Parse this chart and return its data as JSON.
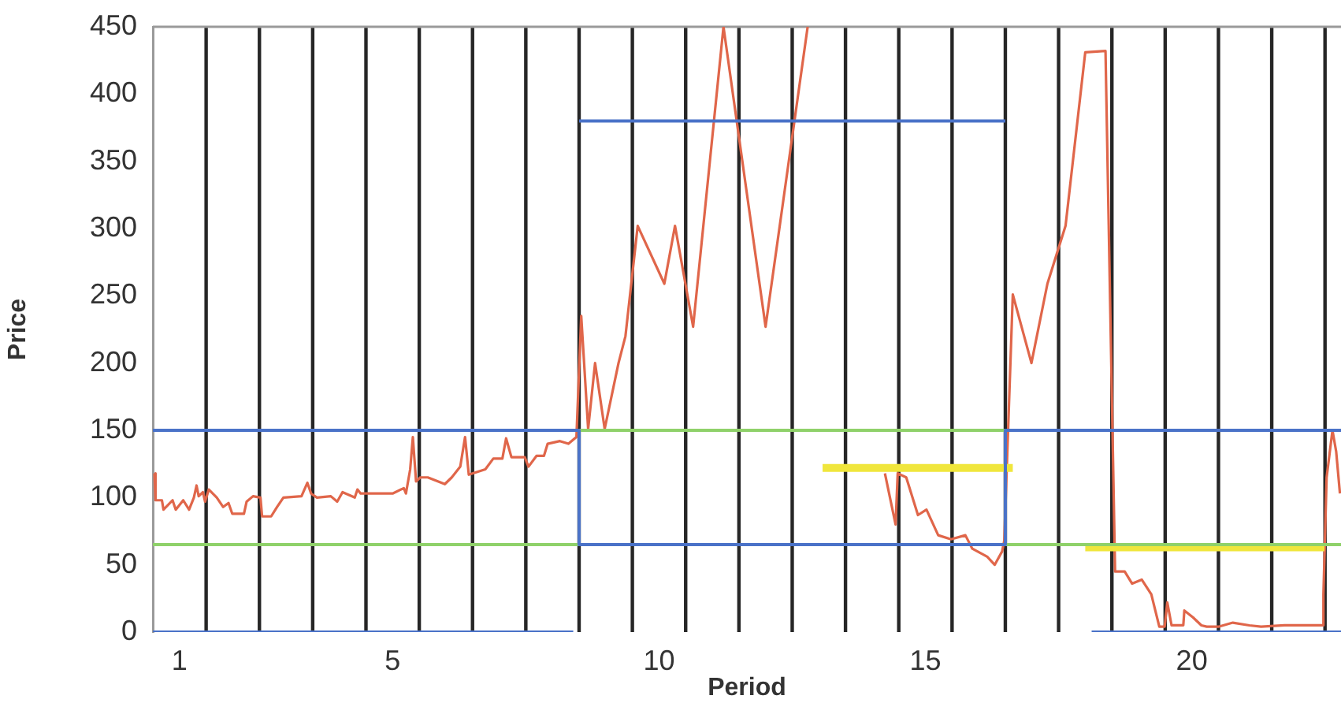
{
  "chart_data": {
    "type": "line",
    "xlabel": "Period",
    "ylabel": "Price",
    "xlim": [
      0.5,
      22.8
    ],
    "ylim": [
      0,
      450
    ],
    "xticks": [
      1,
      5,
      10,
      15,
      20
    ],
    "yticks": [
      0,
      50,
      100,
      150,
      200,
      250,
      300,
      350,
      400,
      450
    ],
    "grid": false,
    "legend": false,
    "marker": "none",
    "series": [
      {
        "color": "#4a72c8",
        "x": [
          0.5,
          8.5,
          8.5,
          16.5,
          16.5,
          22.8
        ],
        "values": [
          150,
          150,
          65,
          65,
          150,
          150
        ]
      },
      {
        "color": "#4a72c8",
        "x": [
          8.5,
          16.5
        ],
        "values": [
          380,
          380
        ]
      },
      {
        "color": "#4a72c8",
        "x": [
          0.5,
          8.39,
          14,
          18.12,
          22.8
        ],
        "values": [
          0,
          0,
          null,
          0,
          0
        ]
      },
      {
        "color": "#8fd16a",
        "x": [
          0.5,
          8.5,
          8.5,
          16.5,
          16.5,
          22.8
        ],
        "values": [
          65,
          65,
          150,
          150,
          65,
          65
        ]
      },
      {
        "color": "#f0e63c",
        "x": [
          13.07,
          16.64
        ],
        "values": [
          122,
          122
        ]
      },
      {
        "color": "#f0e63c",
        "x": [
          18.0,
          22.49
        ],
        "values": [
          63,
          63
        ]
      },
      {
        "color": "#e0664a",
        "x": [
          0.53,
          0.55,
          0.67,
          0.7,
          0.87,
          0.93,
          1.07,
          1.18,
          1.27,
          1.32,
          1.36,
          1.44,
          1.48,
          1.55,
          1.7,
          1.82,
          1.92,
          1.99,
          2.21,
          2.26,
          2.38,
          2.52,
          2.55,
          2.72,
          2.83,
          2.95,
          3.29,
          3.4,
          3.47,
          3.58,
          3.84,
          3.96,
          4.06,
          4.29,
          4.34,
          4.4,
          4.54,
          5.0,
          5.21,
          5.25,
          5.33,
          5.38,
          5.44,
          5.52,
          5.66,
          5.98,
          6.11,
          6.27,
          6.36,
          6.43,
          6.74,
          6.89,
          7.06,
          7.13,
          7.23,
          7.48,
          7.55,
          7.7,
          7.84,
          7.91,
          8.14,
          8.3,
          8.45,
          8.54,
          8.67,
          8.8,
          8.98,
          9.24,
          9.37,
          9.6,
          10.1,
          10.3,
          10.64,
          11.21,
          12.0,
          12.79,
          13.82,
          14.24,
          14.44,
          14.48,
          14.64,
          14.86,
          15.02,
          15.24,
          15.48,
          15.75,
          15.88,
          16.16,
          16.3,
          16.44,
          16.48,
          16.64,
          16.99,
          17.29,
          17.63,
          18.0,
          18.38,
          18.56,
          18.74,
          18.88,
          19.06,
          19.24,
          19.39,
          19.49,
          19.54,
          19.62,
          19.84,
          19.86,
          20.02,
          20.18,
          20.28,
          20.5,
          20.77,
          21.08,
          21.3,
          21.74,
          22.45,
          22.47,
          22.53,
          22.64,
          22.71,
          22.78
        ],
        "values": [
          118,
          98,
          98,
          91,
          98,
          91,
          98,
          91,
          100,
          109,
          101,
          104,
          97,
          106,
          100,
          93,
          96,
          88,
          88,
          97,
          101,
          100,
          86,
          86,
          93,
          100,
          101,
          111,
          103,
          100,
          101,
          97,
          104,
          100,
          106,
          103,
          103,
          103,
          107,
          103,
          121,
          145,
          112,
          115,
          115,
          110,
          115,
          123,
          145,
          117,
          121,
          129,
          129,
          144,
          130,
          130,
          123,
          131,
          131,
          140,
          142,
          140,
          145,
          235,
          151,
          200,
          151,
          200,
          220,
          302,
          259,
          302,
          227,
          450,
          227,
          450,
          null,
          118,
          80,
          118,
          115,
          87,
          91,
          72,
          69,
          72,
          62,
          56,
          50,
          60,
          68,
          251,
          200,
          259,
          302,
          431,
          432,
          45,
          45,
          36,
          39,
          28,
          4,
          4,
          22,
          5,
          5,
          16,
          11,
          5,
          4,
          4,
          7,
          5,
          4,
          5,
          5,
          28,
          115,
          150,
          134,
          103
        ]
      }
    ],
    "ref_lines": [
      {
        "axis": "x",
        "value": 1.5,
        "color": "#262626"
      },
      {
        "axis": "x",
        "value": 2.5,
        "color": "#262626"
      },
      {
        "axis": "x",
        "value": 3.5,
        "color": "#262626"
      },
      {
        "axis": "x",
        "value": 4.5,
        "color": "#262626"
      },
      {
        "axis": "x",
        "value": 5.5,
        "color": "#262626"
      },
      {
        "axis": "x",
        "value": 6.5,
        "color": "#262626"
      },
      {
        "axis": "x",
        "value": 7.5,
        "color": "#262626"
      },
      {
        "axis": "x",
        "value": 8.5,
        "color": "#262626"
      },
      {
        "axis": "x",
        "value": 9.5,
        "color": "#262626"
      },
      {
        "axis": "x",
        "value": 10.5,
        "color": "#262626"
      },
      {
        "axis": "x",
        "value": 11.5,
        "color": "#262626"
      },
      {
        "axis": "x",
        "value": 12.5,
        "color": "#262626"
      },
      {
        "axis": "x",
        "value": 13.5,
        "color": "#262626"
      },
      {
        "axis": "x",
        "value": 14.5,
        "color": "#262626"
      },
      {
        "axis": "x",
        "value": 15.5,
        "color": "#262626"
      },
      {
        "axis": "x",
        "value": 16.5,
        "color": "#262626"
      },
      {
        "axis": "x",
        "value": 17.5,
        "color": "#262626"
      },
      {
        "axis": "x",
        "value": 18.5,
        "color": "#262626"
      },
      {
        "axis": "x",
        "value": 19.5,
        "color": "#262626"
      },
      {
        "axis": "x",
        "value": 20.5,
        "color": "#262626"
      },
      {
        "axis": "x",
        "value": 21.5,
        "color": "#262626"
      },
      {
        "axis": "x",
        "value": 22.5,
        "color": "#262626"
      }
    ]
  }
}
